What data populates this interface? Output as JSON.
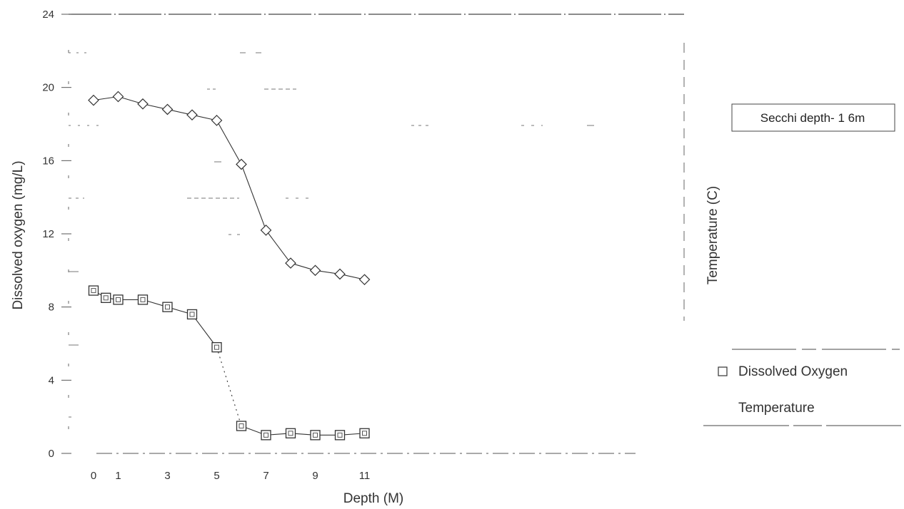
{
  "chart_data": {
    "type": "line",
    "xlabel": "Depth (M)",
    "ylabel_left": "Dissolved oxygen (mg/L)",
    "ylabel_right": "Temperature (C)",
    "ylim": [
      0,
      24
    ],
    "y_ticks": [
      "0",
      "4",
      "8",
      "12",
      "16",
      "20",
      "24"
    ],
    "x_tick_labels": [
      {
        "x": 0,
        "label": "0"
      },
      {
        "x": 1,
        "label": "1"
      },
      {
        "x": 3,
        "label": "3"
      },
      {
        "x": 5,
        "label": "5"
      },
      {
        "x": 7,
        "label": "7"
      },
      {
        "x": 9,
        "label": "9"
      },
      {
        "x": 11,
        "label": "11"
      }
    ],
    "annotation": "Secchi depth- 1 6m",
    "legend_position": "right",
    "series": [
      {
        "name": "Dissolved Oxygen",
        "marker": "square",
        "color": "#333333",
        "points": [
          {
            "x": 0,
            "y": 8.9
          },
          {
            "x": 0.5,
            "y": 8.5
          },
          {
            "x": 1,
            "y": 8.4
          },
          {
            "x": 2,
            "y": 8.4
          },
          {
            "x": 3,
            "y": 8.0
          },
          {
            "x": 4,
            "y": 7.6
          },
          {
            "x": 5,
            "y": 5.8
          },
          {
            "x": 6,
            "y": 1.5
          },
          {
            "x": 7,
            "y": 1.0
          },
          {
            "x": 8,
            "y": 1.1
          },
          {
            "x": 9,
            "y": 1.0
          },
          {
            "x": 10,
            "y": 1.0
          },
          {
            "x": 11,
            "y": 1.1
          }
        ]
      },
      {
        "name": "Temperature",
        "marker": "diamond",
        "color": "#333333",
        "points": [
          {
            "x": 0,
            "y": 19.3
          },
          {
            "x": 1,
            "y": 19.5
          },
          {
            "x": 2,
            "y": 19.1
          },
          {
            "x": 3,
            "y": 18.8
          },
          {
            "x": 4,
            "y": 18.5
          },
          {
            "x": 5,
            "y": 18.2
          },
          {
            "x": 6,
            "y": 15.8
          },
          {
            "x": 7,
            "y": 12.2
          },
          {
            "x": 8,
            "y": 10.4
          },
          {
            "x": 9,
            "y": 10.0
          },
          {
            "x": 10,
            "y": 9.8
          },
          {
            "x": 11,
            "y": 9.5
          }
        ]
      }
    ]
  }
}
